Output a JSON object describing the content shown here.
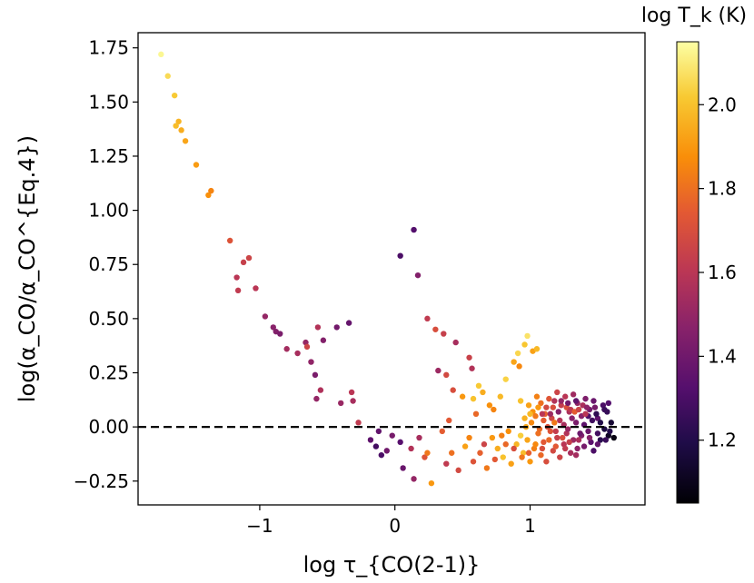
{
  "chart_data": {
    "type": "scatter",
    "title": "",
    "xlabel": "log τ_{CO(2-1)}",
    "ylabel": "log(α_CO/α_CO^{Eq.4})",
    "colorbar_label": "log T_k (K)",
    "xlim": [
      -1.9,
      1.85
    ],
    "ylim": [
      -0.36,
      1.82
    ],
    "xticks": [
      {
        "v": -1,
        "label": "−1"
      },
      {
        "v": 0,
        "label": "0"
      },
      {
        "v": 1,
        "label": "1"
      }
    ],
    "yticks": [
      {
        "v": -0.25,
        "label": "−0.25"
      },
      {
        "v": 0.0,
        "label": "0.00"
      },
      {
        "v": 0.25,
        "label": "0.25"
      },
      {
        "v": 0.5,
        "label": "0.50"
      },
      {
        "v": 0.75,
        "label": "0.75"
      },
      {
        "v": 1.0,
        "label": "1.00"
      },
      {
        "v": 1.25,
        "label": "1.25"
      },
      {
        "v": 1.5,
        "label": "1.50"
      },
      {
        "v": 1.75,
        "label": "1.75"
      }
    ],
    "reference_line": {
      "y": 0.0,
      "style": "dashed",
      "color": "#000000"
    },
    "colorbar": {
      "colormap": "inferno",
      "range": [
        1.05,
        2.15
      ],
      "ticks": [
        {
          "v": 1.2,
          "label": "1.2"
        },
        {
          "v": 1.4,
          "label": "1.4"
        },
        {
          "v": 1.6,
          "label": "1.6"
        },
        {
          "v": 1.8,
          "label": "1.8"
        },
        {
          "v": 2.0,
          "label": "2.0"
        }
      ]
    },
    "grid": false,
    "points": [
      [
        -1.73,
        1.72,
        2.13
      ],
      [
        -1.68,
        1.62,
        2.06
      ],
      [
        -1.63,
        1.53,
        2.02
      ],
      [
        -1.6,
        1.41,
        1.97
      ],
      [
        -1.62,
        1.39,
        1.99
      ],
      [
        -1.58,
        1.37,
        1.95
      ],
      [
        -1.55,
        1.32,
        1.93
      ],
      [
        -1.47,
        1.21,
        1.91
      ],
      [
        -1.38,
        1.07,
        1.88
      ],
      [
        -1.36,
        1.09,
        1.85
      ],
      [
        -1.22,
        0.86,
        1.72
      ],
      [
        -1.08,
        0.78,
        1.66
      ],
      [
        -1.12,
        0.76,
        1.64
      ],
      [
        -1.17,
        0.69,
        1.6
      ],
      [
        -1.16,
        0.63,
        1.62
      ],
      [
        -1.03,
        0.64,
        1.6
      ],
      [
        -0.96,
        0.51,
        1.5
      ],
      [
        -0.9,
        0.46,
        1.47
      ],
      [
        -0.88,
        0.44,
        1.45
      ],
      [
        -0.85,
        0.43,
        1.43
      ],
      [
        -0.8,
        0.36,
        1.54
      ],
      [
        -0.72,
        0.34,
        1.55
      ],
      [
        -0.66,
        0.39,
        1.5
      ],
      [
        -0.65,
        0.37,
        1.66
      ],
      [
        -0.62,
        0.3,
        1.49
      ],
      [
        -0.57,
        0.46,
        1.58
      ],
      [
        -0.53,
        0.4,
        1.45
      ],
      [
        -0.59,
        0.24,
        1.43
      ],
      [
        -0.55,
        0.17,
        1.57
      ],
      [
        -0.58,
        0.13,
        1.5
      ],
      [
        -0.43,
        0.46,
        1.41
      ],
      [
        -0.4,
        0.11,
        1.51
      ],
      [
        -0.34,
        0.48,
        1.37
      ],
      [
        -0.32,
        0.16,
        1.6
      ],
      [
        -0.31,
        0.12,
        1.55
      ],
      [
        -0.27,
        0.02,
        1.62
      ],
      [
        0.04,
        0.79,
        1.3
      ],
      [
        0.14,
        0.91,
        1.32
      ],
      [
        0.17,
        0.7,
        1.45
      ],
      [
        0.24,
        0.5,
        1.62
      ],
      [
        0.3,
        0.45,
        1.7
      ],
      [
        0.36,
        0.43,
        1.64
      ],
      [
        0.32,
        0.26,
        1.52
      ],
      [
        0.38,
        0.24,
        1.68
      ],
      [
        0.45,
        0.39,
        1.55
      ],
      [
        0.55,
        0.32,
        1.65
      ],
      [
        0.57,
        0.27,
        1.58
      ],
      [
        0.43,
        0.17,
        1.7
      ],
      [
        0.5,
        0.14,
        1.9
      ],
      [
        0.58,
        0.13,
        2.0
      ],
      [
        0.62,
        0.19,
        2.02
      ],
      [
        0.65,
        0.16,
        1.95
      ],
      [
        0.7,
        0.1,
        1.88
      ],
      [
        0.73,
        0.08,
        1.85
      ],
      [
        0.78,
        0.14,
        1.98
      ],
      [
        0.82,
        0.22,
        2.04
      ],
      [
        0.88,
        0.3,
        1.93
      ],
      [
        0.91,
        0.34,
        2.05
      ],
      [
        0.96,
        0.38,
        2.01
      ],
      [
        0.98,
        0.42,
        2.08
      ],
      [
        1.02,
        0.35,
        1.92
      ],
      [
        1.05,
        0.36,
        1.98
      ],
      [
        0.92,
        0.28,
        1.86
      ],
      [
        0.6,
        0.06,
        1.78
      ],
      [
        0.4,
        0.03,
        1.74
      ],
      [
        -0.18,
        -0.06,
        1.35
      ],
      [
        -0.14,
        -0.09,
        1.28
      ],
      [
        -0.1,
        -0.13,
        1.3
      ],
      [
        -0.06,
        -0.11,
        1.4
      ],
      [
        -0.02,
        -0.04,
        1.42
      ],
      [
        0.04,
        -0.07,
        1.33
      ],
      [
        -0.12,
        -0.02,
        1.36
      ],
      [
        0.06,
        -0.19,
        1.38
      ],
      [
        0.14,
        -0.24,
        1.5
      ],
      [
        0.12,
        -0.1,
        1.58
      ],
      [
        0.18,
        -0.05,
        1.55
      ],
      [
        0.22,
        -0.14,
        1.72
      ],
      [
        0.27,
        -0.26,
        1.9
      ],
      [
        0.24,
        -0.12,
        1.82
      ],
      [
        0.35,
        -0.02,
        1.75
      ],
      [
        0.38,
        -0.17,
        1.62
      ],
      [
        0.42,
        -0.12,
        1.8
      ],
      [
        0.47,
        -0.2,
        1.68
      ],
      [
        0.52,
        -0.09,
        1.92
      ],
      [
        0.55,
        -0.05,
        1.85
      ],
      [
        0.58,
        -0.16,
        1.72
      ],
      [
        0.63,
        -0.12,
        1.76
      ],
      [
        0.68,
        -0.19,
        1.82
      ],
      [
        0.72,
        -0.05,
        1.9
      ],
      [
        0.76,
        -0.1,
        1.95
      ],
      [
        0.8,
        -0.14,
        2.0
      ],
      [
        0.84,
        -0.02,
        1.88
      ],
      [
        0.86,
        -0.17,
        1.92
      ],
      [
        0.9,
        -0.08,
        1.97
      ],
      [
        0.93,
        -0.04,
        2.03
      ],
      [
        0.95,
        -0.12,
        1.99
      ],
      [
        0.98,
        -0.06,
        1.93
      ],
      [
        1.0,
        -0.16,
        1.9
      ],
      [
        1.03,
        -0.1,
        1.84
      ],
      [
        1.06,
        -0.03,
        1.8
      ],
      [
        1.08,
        -0.13,
        1.78
      ],
      [
        1.1,
        -0.07,
        1.74
      ],
      [
        1.12,
        -0.16,
        1.7
      ],
      [
        1.15,
        -0.02,
        1.72
      ],
      [
        1.17,
        -0.11,
        1.68
      ],
      [
        1.2,
        -0.05,
        1.64
      ],
      [
        1.22,
        -0.14,
        1.66
      ],
      [
        1.25,
        -0.08,
        1.6
      ],
      [
        1.27,
        -0.03,
        1.58
      ],
      [
        1.3,
        -0.12,
        1.55
      ],
      [
        1.32,
        -0.06,
        1.52
      ],
      [
        1.35,
        -0.1,
        1.48
      ],
      [
        1.38,
        -0.04,
        1.45
      ],
      [
        1.4,
        -0.09,
        1.42
      ],
      [
        1.43,
        -0.02,
        1.38
      ],
      [
        1.45,
        -0.07,
        1.34
      ],
      [
        1.47,
        -0.11,
        1.3
      ],
      [
        1.5,
        -0.03,
        1.28
      ],
      [
        1.52,
        -0.06,
        1.22
      ],
      [
        1.55,
        -0.01,
        1.18
      ],
      [
        1.58,
        -0.04,
        1.12
      ],
      [
        1.62,
        -0.05,
        1.08
      ],
      [
        1.6,
        0.02,
        1.15
      ],
      [
        1.57,
        0.07,
        1.25
      ],
      [
        1.54,
        0.1,
        1.3
      ],
      [
        1.5,
        0.04,
        1.35
      ],
      [
        1.47,
        0.12,
        1.38
      ],
      [
        1.44,
        0.08,
        1.4
      ],
      [
        1.41,
        0.13,
        1.44
      ],
      [
        1.38,
        0.05,
        1.47
      ],
      [
        1.35,
        0.11,
        1.5
      ],
      [
        1.32,
        0.15,
        1.53
      ],
      [
        1.29,
        0.07,
        1.56
      ],
      [
        1.26,
        0.14,
        1.6
      ],
      [
        1.23,
        0.1,
        1.63
      ],
      [
        1.2,
        0.16,
        1.66
      ],
      [
        1.17,
        0.09,
        1.7
      ],
      [
        1.14,
        0.13,
        1.73
      ],
      [
        1.11,
        0.06,
        1.76
      ],
      [
        1.08,
        0.11,
        1.8
      ],
      [
        1.05,
        0.14,
        1.84
      ],
      [
        1.02,
        0.07,
        1.88
      ],
      [
        0.99,
        0.1,
        1.92
      ],
      [
        0.96,
        0.04,
        1.96
      ],
      [
        0.93,
        0.12,
        2.0
      ],
      [
        1.01,
        0.02,
        1.86
      ],
      [
        1.04,
        0.05,
        1.82
      ],
      [
        1.07,
        -0.01,
        1.79
      ],
      [
        1.1,
        0.03,
        1.75
      ],
      [
        1.13,
        0.0,
        1.71
      ],
      [
        1.16,
        0.04,
        1.67
      ],
      [
        1.19,
        -0.02,
        1.63
      ],
      [
        1.22,
        0.03,
        1.59
      ],
      [
        1.25,
        0.01,
        1.55
      ],
      [
        1.28,
        -0.01,
        1.51
      ],
      [
        1.31,
        0.04,
        1.47
      ],
      [
        1.34,
        0.02,
        1.43
      ],
      [
        1.37,
        -0.03,
        1.39
      ],
      [
        1.4,
        0.01,
        1.35
      ],
      [
        1.43,
        0.05,
        1.31
      ],
      [
        1.46,
        0.03,
        1.27
      ],
      [
        1.49,
        0.06,
        1.23
      ],
      [
        1.52,
        0.02,
        1.2
      ],
      [
        1.55,
        0.08,
        1.26
      ],
      [
        1.58,
        0.11,
        1.32
      ],
      [
        1.27,
        0.09,
        1.7
      ],
      [
        1.3,
        0.08,
        1.62
      ],
      [
        1.18,
        0.12,
        1.58
      ],
      [
        1.12,
        0.09,
        1.68
      ],
      [
        1.06,
        0.09,
        1.9
      ],
      [
        0.97,
        0.0,
        1.94
      ],
      [
        1.0,
        0.06,
        1.98
      ],
      [
        1.09,
        0.06,
        1.6
      ],
      [
        1.15,
        0.06,
        1.52
      ],
      [
        1.21,
        0.07,
        1.45
      ],
      [
        1.33,
        0.07,
        1.75
      ],
      [
        1.36,
        0.08,
        1.66
      ],
      [
        1.39,
        0.1,
        1.56
      ],
      [
        1.42,
        0.09,
        1.48
      ],
      [
        1.48,
        0.09,
        1.42
      ],
      [
        1.24,
        -0.05,
        1.7
      ],
      [
        1.14,
        -0.06,
        1.78
      ],
      [
        1.04,
        -0.08,
        1.86
      ],
      [
        1.19,
        -0.09,
        1.74
      ],
      [
        1.29,
        -0.07,
        1.64
      ],
      [
        1.36,
        -0.06,
        1.56
      ],
      [
        1.44,
        -0.05,
        1.46
      ],
      [
        1.5,
        -0.08,
        1.36
      ],
      [
        1.56,
        -0.06,
        1.26
      ],
      [
        1.59,
        -0.02,
        1.2
      ],
      [
        0.94,
        -0.14,
        1.82
      ],
      [
        0.99,
        -0.12,
        1.76
      ],
      [
        1.09,
        -0.1,
        1.7
      ],
      [
        1.26,
        -0.1,
        1.62
      ],
      [
        1.34,
        -0.13,
        1.54
      ],
      [
        0.88,
        -0.1,
        1.7
      ],
      [
        0.82,
        -0.08,
        1.78
      ],
      [
        0.79,
        -0.04,
        1.84
      ],
      [
        0.74,
        -0.15,
        1.74
      ],
      [
        0.66,
        -0.08,
        1.66
      ],
      [
        1.18,
        0.02,
        1.82
      ],
      [
        1.23,
        0.12,
        1.5
      ],
      [
        1.28,
        0.11,
        1.4
      ],
      [
        1.34,
        0.12,
        1.36
      ],
      [
        1.41,
        0.06,
        1.6
      ]
    ]
  }
}
